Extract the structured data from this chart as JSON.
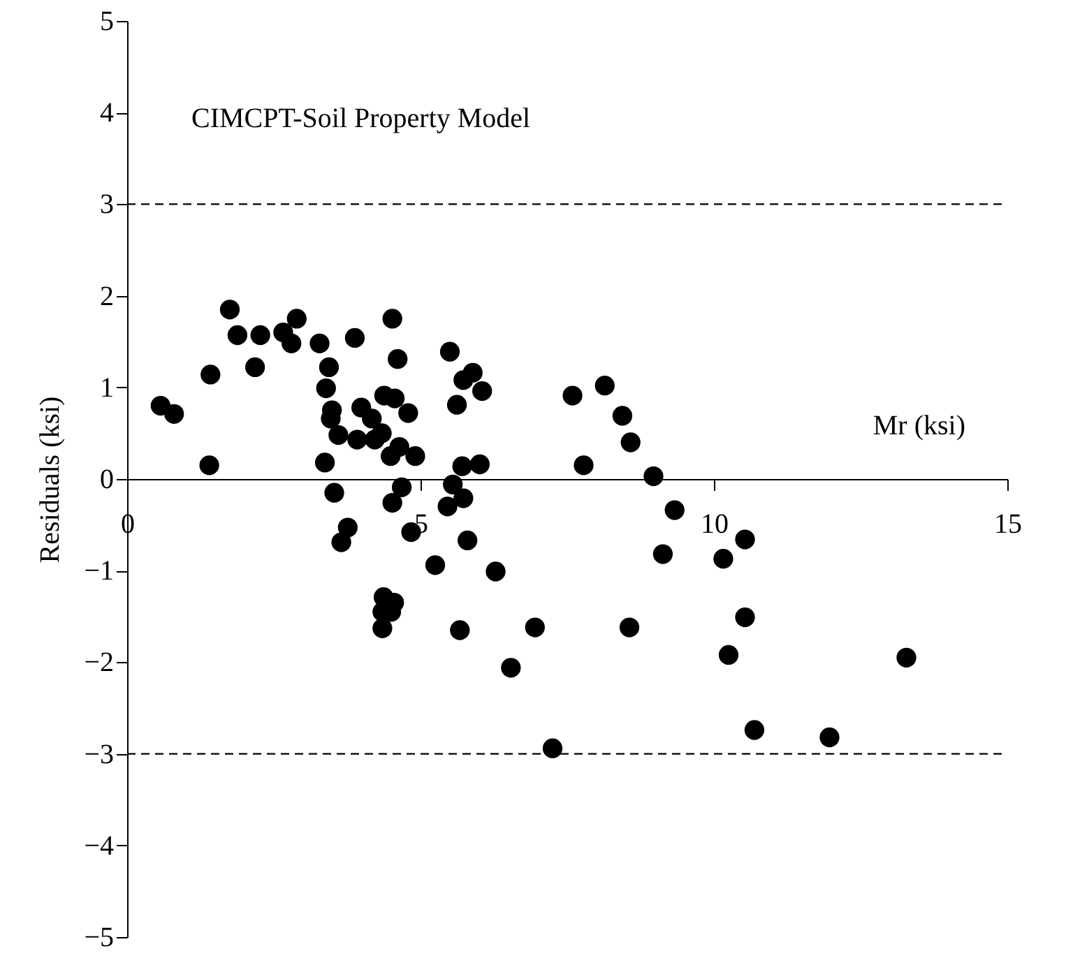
{
  "chart_data": {
    "type": "scatter",
    "annotations": [
      "CIMCPT-Soil Property Model"
    ],
    "xlabel": "Mr (ksi)",
    "ylabel": "Residuals (ksi)",
    "xlim": [
      0,
      15
    ],
    "xticks": [
      0,
      5,
      10,
      15
    ],
    "ylim": [
      -5,
      5
    ],
    "yticks": [
      -5,
      -4,
      -3,
      -2,
      -1,
      0,
      1,
      2,
      3,
      4,
      5
    ],
    "grid": false,
    "marker": "circle",
    "ref_lines": [
      {
        "axis": "y",
        "value": 3,
        "color": "#000000",
        "line_style": "dashed"
      },
      {
        "axis": "y",
        "value": -3,
        "color": "#000000",
        "line_style": "dashed"
      }
    ],
    "series": [
      {
        "color": "#000000",
        "x": [
          0.57,
          0.8,
          1.42,
          1.4,
          1.75,
          1.88,
          2.18,
          2.27,
          2.66,
          2.8,
          2.89,
          3.28,
          3.44,
          3.39,
          3.37,
          3.49,
          3.47,
          3.6,
          3.53,
          3.65,
          3.76,
          3.88,
          3.92,
          3.99,
          4.17,
          4.34,
          4.22,
          4.38,
          4.56,
          4.52,
          4.61,
          4.49,
          4.64,
          4.79,
          4.91,
          4.68,
          4.52,
          4.84,
          5.25,
          5.5,
          5.89,
          5.73,
          6.05,
          5.62,
          5.71,
          6.01,
          5.55,
          5.73,
          5.46,
          5.8,
          6.28,
          7.59,
          8.14,
          8.44,
          8.58,
          7.78,
          8.97,
          9.33,
          9.13,
          10.16,
          10.53,
          8.56,
          10.53,
          10.25,
          13.28,
          10.69,
          11.97,
          4.37,
          4.35,
          4.35,
          4.55,
          4.5,
          5.67,
          6.54,
          6.95,
          7.25
        ],
        "values": [
          0.8,
          0.71,
          1.14,
          0.15,
          1.85,
          1.57,
          1.22,
          1.57,
          1.6,
          1.48,
          1.75,
          1.48,
          1.22,
          0.99,
          0.18,
          0.75,
          0.66,
          0.48,
          -0.15,
          -0.69,
          -0.53,
          1.54,
          0.43,
          0.78,
          0.66,
          0.5,
          0.43,
          0.91,
          0.88,
          1.75,
          1.31,
          0.25,
          0.35,
          0.72,
          0.25,
          -0.09,
          -0.26,
          -0.58,
          -0.94,
          1.39,
          1.16,
          1.08,
          0.96,
          0.81,
          0.14,
          0.16,
          -0.06,
          -0.21,
          -0.3,
          -0.67,
          -1.01,
          0.91,
          1.02,
          0.69,
          0.4,
          0.15,
          0.03,
          -0.34,
          -0.82,
          -0.87,
          -0.66,
          -1.62,
          -1.51,
          -1.92,
          -1.95,
          -2.74,
          -2.82,
          -1.29,
          -1.45,
          -1.63,
          -1.35,
          -1.45,
          -1.65,
          -2.06,
          -1.62,
          -2.94
        ]
      }
    ]
  }
}
